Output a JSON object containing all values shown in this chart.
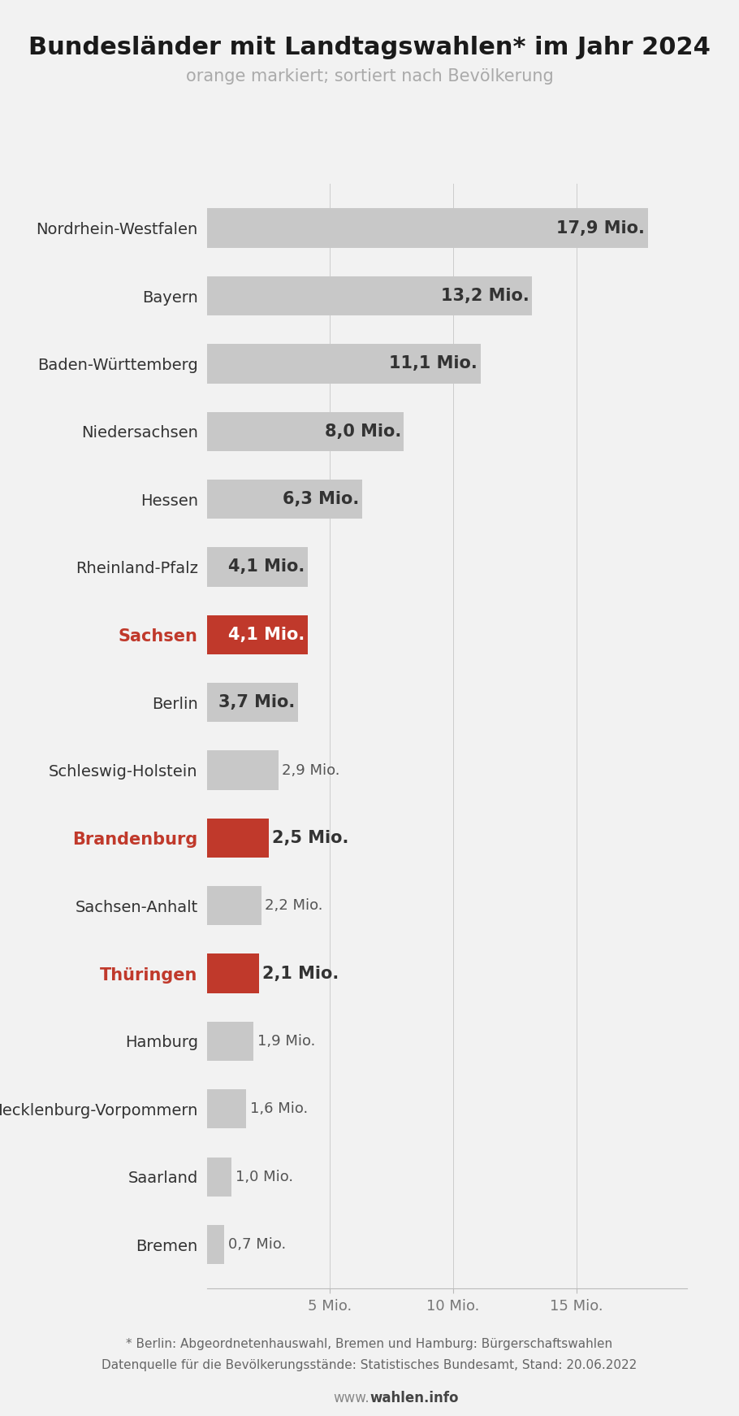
{
  "title": "Bundesländer mit Landtagswahlen* im Jahr 2024",
  "subtitle": "orange markiert; sortiert nach Bevölkerung",
  "categories": [
    "Nordrhein-Westfalen",
    "Bayern",
    "Baden-Württemberg",
    "Niedersachsen",
    "Hessen",
    "Rheinland-Pfalz",
    "Sachsen",
    "Berlin",
    "Schleswig-Holstein",
    "Brandenburg",
    "Sachsen-Anhalt",
    "Thüringen",
    "Hamburg",
    "Mecklenburg-Vorpommern",
    "Saarland",
    "Bremen"
  ],
  "values": [
    17.9,
    13.2,
    11.1,
    8.0,
    6.3,
    4.1,
    4.1,
    3.7,
    2.9,
    2.5,
    2.2,
    2.1,
    1.9,
    1.6,
    1.0,
    0.7
  ],
  "labels": [
    "17,9 Mio.",
    "13,2 Mio.",
    "11,1 Mio.",
    "8,0 Mio.",
    "6,3 Mio.",
    "4,1 Mio.",
    "4,1 Mio.",
    "3,7 Mio.",
    "2,9 Mio.",
    "2,5 Mio.",
    "2,2 Mio.",
    "2,1 Mio.",
    "1,9 Mio.",
    "1,6 Mio.",
    "1,0 Mio.",
    "0,7 Mio."
  ],
  "highlighted": [
    false,
    false,
    false,
    false,
    false,
    false,
    true,
    false,
    false,
    true,
    false,
    true,
    false,
    false,
    false,
    false
  ],
  "bar_color_normal": "#c8c8c8",
  "bar_color_highlight": "#c0392b",
  "title_color": "#1a1a1a",
  "subtitle_color": "#aaaaaa",
  "background_color": "#f2f2f2",
  "xlim": [
    0,
    19.5
  ],
  "xticks": [
    5,
    10,
    15
  ],
  "xticklabels": [
    "5 Mio.",
    "10 Mio.",
    "15 Mio."
  ],
  "footnote1": "* Berlin: Abgeordnetenhauswahl, Bremen und Hamburg: Bürgerschaftswahlen",
  "footnote2": "Datenquelle für die Bevölkerungsstände: Statistisches Bundesamt, Stand: 20.06.2022",
  "watermark_prefix": "www.",
  "watermark_bold": "wahlen.info",
  "inside_label_threshold": 3.7,
  "inside_label_bold_threshold": 2.5
}
